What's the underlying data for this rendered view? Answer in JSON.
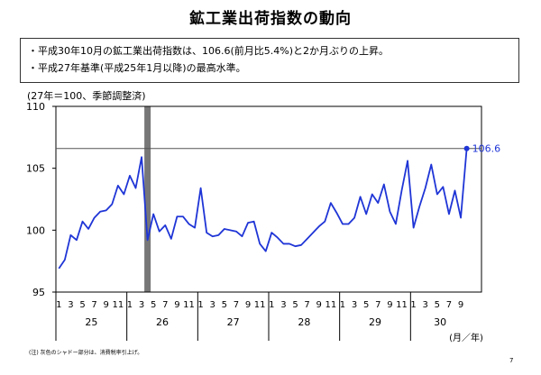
{
  "page": {
    "title": "鉱工業出荷指数の動向",
    "bullets": [
      "・平成30年10月の鉱工業出荷指数は、106.6(前月比5.4%)と2か月ぶりの上昇。",
      "・平成27年基準(平成25年1月以降)の最高水準。"
    ],
    "unit_note": "(27年＝100、季節調整済)",
    "footnote": "(注) 灰色のシャドー部分は、消費税率引上げ。",
    "page_number": "7"
  },
  "chart_data": {
    "type": "line",
    "ylim": [
      95,
      110
    ],
    "yticks": [
      95,
      100,
      105,
      110
    ],
    "x_unit_label": "(月／年)",
    "years": [
      {
        "label": "25",
        "months": 12
      },
      {
        "label": "26",
        "months": 12
      },
      {
        "label": "27",
        "months": 12
      },
      {
        "label": "28",
        "months": 12
      },
      {
        "label": "29",
        "months": 12
      },
      {
        "label": "30",
        "months": 10
      }
    ],
    "month_tick_labels": [
      "1",
      "",
      "3",
      "",
      "5",
      "",
      "7",
      "",
      "9",
      "",
      "11",
      ""
    ],
    "series": [
      {
        "color": "#1f35d6",
        "values": [
          96.9,
          97.6,
          99.6,
          99.2,
          100.7,
          100.1,
          101.0,
          101.5,
          101.6,
          102.1,
          103.6,
          102.9,
          104.4,
          103.4,
          105.9,
          99.2,
          101.3,
          99.9,
          100.4,
          99.3,
          101.1,
          101.1,
          100.5,
          100.2,
          103.4,
          99.8,
          99.5,
          99.6,
          100.1,
          100.0,
          99.9,
          99.5,
          100.6,
          100.7,
          98.9,
          98.3,
          99.8,
          99.4,
          98.9,
          98.9,
          98.7,
          98.8,
          99.3,
          99.8,
          100.3,
          100.7,
          102.2,
          101.4,
          100.5,
          100.5,
          101.0,
          102.7,
          101.3,
          102.9,
          102.2,
          103.7,
          101.5,
          100.5,
          103.2,
          105.6,
          100.2,
          101.9,
          103.4,
          105.3,
          102.9,
          103.5,
          101.3,
          103.2,
          101.0,
          106.6
        ]
      }
    ],
    "shaded_month_index": 15,
    "reference_line_value": 106.6,
    "last_value_label": "106.6",
    "grid": false
  }
}
